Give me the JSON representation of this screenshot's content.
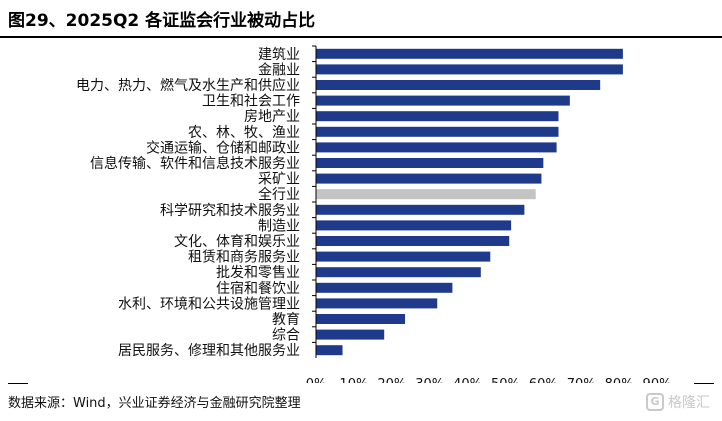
{
  "title": "图29、2025Q2 各证监会行业被动占比",
  "source": "数据来源：Wind，兴业证券经济与金融研究院整理",
  "watermark": "格隆汇",
  "colors": {
    "bar": "#1f3a8a",
    "highlight": "#c3c3c3",
    "axis": "#000000"
  },
  "chart_data": {
    "type": "bar",
    "orientation": "horizontal",
    "title": "图29、2025Q2 各证监会行业被动占比",
    "xlabel": "",
    "ylabel": "",
    "xlim": [
      0,
      0.9
    ],
    "x_ticks": [
      "0%",
      "10%",
      "20%",
      "30%",
      "40%",
      "50%",
      "60%",
      "70%",
      "80%",
      "90%"
    ],
    "grid": false,
    "legend": "none",
    "categories": [
      "建筑业",
      "金融业",
      "电力、热力、燃气及水生产和供应业",
      "卫生和社会工作",
      "房地产业",
      "农、林、牧、渔业",
      "交通运输、仓储和邮政业",
      "信息传输、软件和信息技术服务业",
      "采矿业",
      "全行业",
      "科学研究和技术服务业",
      "制造业",
      "文化、体育和娱乐业",
      "租赁和商务服务业",
      "批发和零售业",
      "住宿和餐饮业",
      "水利、环境和公共设施管理业",
      "教育",
      "综合",
      "居民服务、修理和其他服务业"
    ],
    "values": [
      0.81,
      0.81,
      0.75,
      0.67,
      0.64,
      0.64,
      0.635,
      0.6,
      0.595,
      0.58,
      0.55,
      0.515,
      0.51,
      0.46,
      0.435,
      0.36,
      0.32,
      0.235,
      0.18,
      0.07
    ],
    "highlight_category": "全行业"
  }
}
